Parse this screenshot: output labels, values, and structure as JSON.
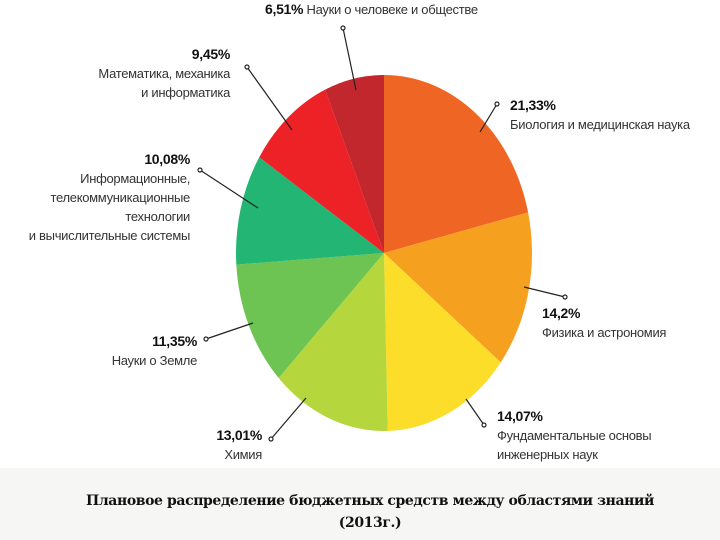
{
  "chart_data": {
    "type": "pie",
    "title": "Плановое распределение  бюджетных средств между областями знаний (2013г.)",
    "slices": [
      {
        "pct_label": "21,33%",
        "label": "Биология и медицинская наука",
        "value": 21.33,
        "color": "#ef6523"
      },
      {
        "pct_label": "14,2%",
        "label": "Физика и астрономия",
        "value": 14.2,
        "color": "#f6a020"
      },
      {
        "pct_label": "14,07%",
        "label": "Фундаментальные основы инженерных наук",
        "value": 14.07,
        "color": "#fcdd2a"
      },
      {
        "pct_label": "13,01%",
        "label": "Химия",
        "value": 13.01,
        "color": "#b5d63c"
      },
      {
        "pct_label": "11,35%",
        "label": "Науки о Земле",
        "value": 11.35,
        "color": "#6ec452"
      },
      {
        "pct_label": "10,08%",
        "label": "Информационные, телекоммуникационные технологии и вычислительные системы",
        "value": 10.08,
        "color": "#22b573"
      },
      {
        "pct_label": "9,45%",
        "label": "Математика, механика и информатика",
        "value": 9.45,
        "color": "#ec2227"
      },
      {
        "pct_label": "6,51%",
        "label": "Науки о человеке и обществе",
        "value": 6.51,
        "color": "#c1272d"
      }
    ]
  },
  "labels": {
    "humanities": {
      "pct": "6,51%",
      "name": "Науки о человеке и обществе"
    },
    "math": {
      "pct": "9,45%",
      "line1": "Математика, механика",
      "line2": "и информатика"
    },
    "it": {
      "pct": "10,08%",
      "line1": "Информационные,",
      "line2": "телекоммуникационные",
      "line3": "технологии",
      "line4": "и вычислительные системы"
    },
    "bio": {
      "pct": "21,33%",
      "name": "Биология и медицинская наука"
    },
    "phys": {
      "pct": "14,2%",
      "name": "Физика и астрономия"
    },
    "earth": {
      "pct": "11,35%",
      "name": "Науки о Земле"
    },
    "fund": {
      "pct": "14,07%",
      "line1": "Фундаментальные основы",
      "line2": "инженерных наук"
    },
    "chem": {
      "pct": "13,01%",
      "name": "Химия"
    }
  },
  "caption": {
    "line1": "Плановое распределение  бюджетных средств между областями знаний",
    "line2": "(2013г.)"
  }
}
